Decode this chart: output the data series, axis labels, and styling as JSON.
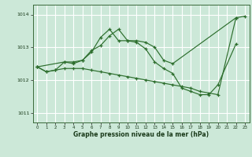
{
  "xlabel": "Graphe pression niveau de la mer (hPa)",
  "bg_color": "#cce8d8",
  "plot_bg_color": "#cce8d8",
  "grid_color": "#ffffff",
  "line_color": "#2d6e2d",
  "ylim": [
    1010.7,
    1014.3
  ],
  "xlim": [
    -0.5,
    23.5
  ],
  "yticks": [
    1011,
    1012,
    1013,
    1014
  ],
  "xticks": [
    0,
    1,
    2,
    3,
    4,
    5,
    6,
    7,
    8,
    9,
    10,
    11,
    12,
    13,
    14,
    15,
    16,
    17,
    18,
    19,
    20,
    21,
    22,
    23
  ],
  "lines": [
    {
      "x": [
        0,
        1,
        2,
        3,
        4,
        5,
        6,
        7,
        8,
        9,
        10,
        11,
        12,
        13,
        14,
        15,
        22
      ],
      "y": [
        1012.4,
        1012.25,
        1012.3,
        1012.55,
        1012.55,
        1012.6,
        1012.9,
        1013.05,
        1013.35,
        1013.55,
        1013.2,
        1013.2,
        1013.15,
        1013.0,
        1012.6,
        1012.5,
        1013.9
      ]
    },
    {
      "x": [
        0,
        3,
        4,
        5,
        6,
        7,
        8,
        9,
        10,
        11,
        12,
        13,
        14,
        15,
        16,
        17,
        18,
        19,
        20,
        22
      ],
      "y": [
        1012.4,
        1012.55,
        1012.5,
        1012.6,
        1012.85,
        1013.3,
        1013.55,
        1013.2,
        1013.2,
        1013.15,
        1012.95,
        1012.55,
        1012.35,
        1012.2,
        1011.75,
        1011.65,
        1011.55,
        1011.55,
        1011.85,
        1013.1
      ]
    },
    {
      "x": [
        0,
        1,
        2,
        3,
        4,
        5,
        6,
        7,
        8,
        9,
        10,
        11,
        12,
        13,
        14,
        15,
        16,
        17,
        18,
        19,
        20,
        22,
        23
      ],
      "y": [
        1012.4,
        1012.25,
        1012.3,
        1012.35,
        1012.35,
        1012.35,
        1012.3,
        1012.25,
        1012.2,
        1012.15,
        1012.1,
        1012.05,
        1012.0,
        1011.95,
        1011.9,
        1011.85,
        1011.8,
        1011.75,
        1011.65,
        1011.6,
        1011.55,
        1013.9,
        1013.95
      ]
    }
  ]
}
